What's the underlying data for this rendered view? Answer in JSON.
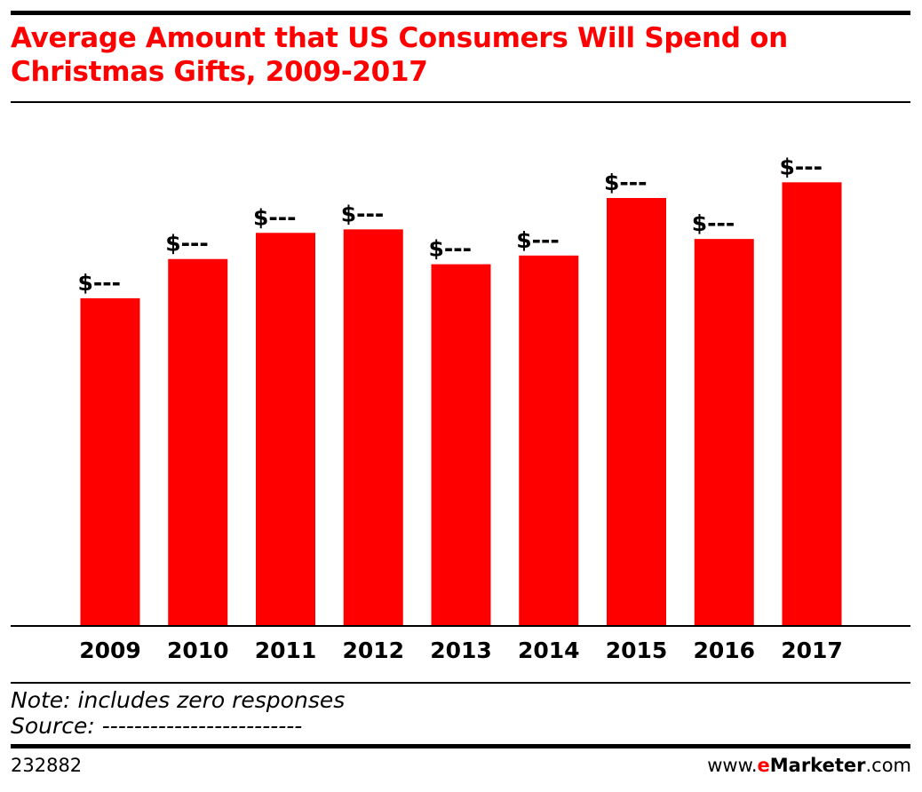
{
  "header": {
    "title": "Average Amount that US Consumers Will Spend on Christmas Gifts, 2009-2017"
  },
  "chart_data": {
    "type": "bar",
    "categories": [
      "2009",
      "2010",
      "2011",
      "2012",
      "2013",
      "2014",
      "2015",
      "2016",
      "2017"
    ],
    "values": [
      376,
      421,
      451,
      455,
      415,
      425,
      491,
      444,
      509
    ],
    "data_labels": [
      "$---",
      "$---",
      "$---",
      "$---",
      "$---",
      "$---",
      "$---",
      "$---",
      "$---"
    ],
    "ylim": [
      0,
      600
    ],
    "grid": false,
    "legend": "none",
    "bar_color": "#ff0000"
  },
  "footer": {
    "note": "Note: includes zero responses",
    "source": "Source: -------------------------",
    "chart_id": "232882",
    "brand_prefix": "www.",
    "brand_e": "e",
    "brand_name": "Marketer",
    "brand_suffix": ".com"
  },
  "colors": {
    "accent": "#ff0000",
    "text": "#000000"
  }
}
